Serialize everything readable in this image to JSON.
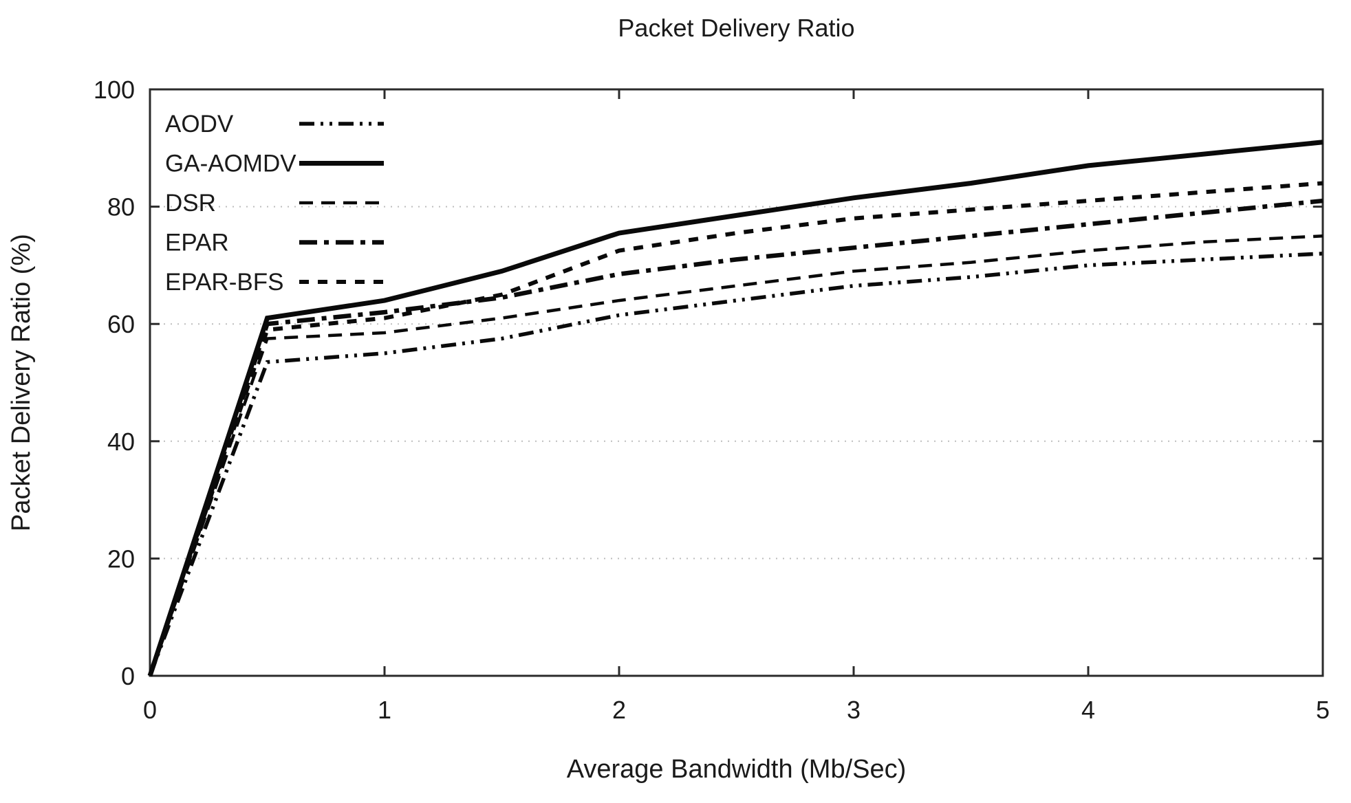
{
  "figure": {
    "background": "#ffffff",
    "line_color": "#0a0a0a",
    "grid_color": "#bdbdbd",
    "border_color": "#2b2b2b",
    "text_color": "#1a1a1a"
  },
  "chart_data": {
    "type": "line",
    "title": "Packet Delivery Ratio",
    "xlabel": "Average Bandwidth (Mb/Sec)",
    "ylabel": "Packet Delivery Ratio (%)",
    "xlim": [
      0,
      5
    ],
    "ylim": [
      0,
      100
    ],
    "x_ticks": [
      0,
      1,
      2,
      3,
      4,
      5
    ],
    "y_ticks": [
      0,
      20,
      40,
      60,
      80,
      100
    ],
    "grid": "horizontal-dotted",
    "legend_position": "top-left-inside",
    "x": [
      0,
      0.5,
      1,
      1.5,
      2,
      2.5,
      3,
      3.5,
      4,
      4.5,
      5
    ],
    "series": [
      {
        "name": "AODV",
        "style": "dash-dot-dot",
        "width": 5.5,
        "values": [
          0,
          53.5,
          55,
          57.5,
          61.5,
          64,
          66.5,
          68,
          70,
          71,
          72
        ]
      },
      {
        "name": "GA-AOMDV",
        "style": "solid",
        "width": 7,
        "values": [
          0,
          61,
          64,
          69,
          75.5,
          78.5,
          81.5,
          84,
          87,
          89,
          91
        ]
      },
      {
        "name": "DSR",
        "style": "dashed",
        "width": 4.5,
        "values": [
          0,
          57.5,
          58.5,
          61,
          64,
          66.5,
          69,
          70.5,
          72.5,
          74,
          75
        ]
      },
      {
        "name": "EPAR",
        "style": "dash-dot",
        "width": 6.5,
        "values": [
          0,
          60,
          62,
          64.5,
          68.5,
          71,
          73,
          75,
          77,
          79,
          81
        ]
      },
      {
        "name": "EPAR-BFS",
        "style": "medium-dash",
        "width": 6,
        "values": [
          0,
          59,
          61,
          65,
          72.5,
          75.5,
          78,
          79.5,
          81,
          82.5,
          84
        ]
      }
    ]
  }
}
